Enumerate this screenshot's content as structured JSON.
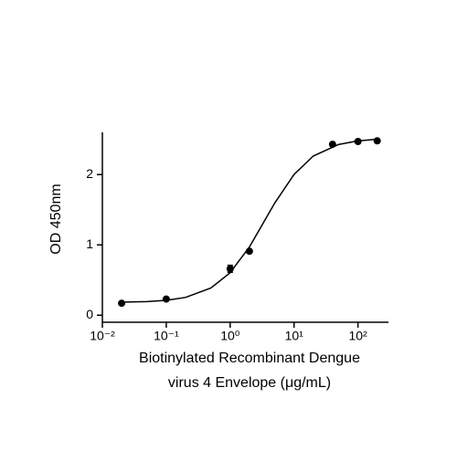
{
  "chart_data": {
    "type": "scatter",
    "xlog": true,
    "ylabel": "OD 450nm",
    "xlabel": [
      "Biotinylated Recombinant Dengue",
      "virus 4 Envelope (μg/mL)"
    ],
    "x": [
      0.02,
      0.1,
      1,
      2,
      40,
      100,
      200
    ],
    "values": [
      0.17,
      0.23,
      0.66,
      0.91,
      2.43,
      2.47,
      2.48
    ],
    "errors": [
      0.01,
      0.01,
      0.05,
      0.02,
      0.02,
      0.02,
      0.01
    ],
    "color": "#000000",
    "fit": {
      "x": [
        0.02,
        0.05,
        0.1,
        0.2,
        0.5,
        1,
        2,
        5,
        10,
        20,
        50,
        100,
        200
      ],
      "values": [
        0.185,
        0.194,
        0.212,
        0.253,
        0.387,
        0.605,
        0.97,
        1.597,
        2.002,
        2.264,
        2.428,
        2.479,
        2.502
      ]
    },
    "xlim": [
      0.01,
      300
    ],
    "ylim": [
      -0.1,
      2.6
    ],
    "xticks": [
      {
        "value": 0.01,
        "label": "10⁻²"
      },
      {
        "value": 0.1,
        "label": "10⁻¹"
      },
      {
        "value": 1,
        "label": "10⁰"
      },
      {
        "value": 10,
        "label": "10¹"
      },
      {
        "value": 100,
        "label": "10²"
      }
    ],
    "yticks": [
      0,
      1,
      2
    ]
  }
}
